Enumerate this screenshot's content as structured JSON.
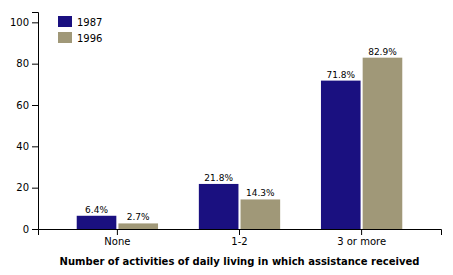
{
  "chart_data": {
    "type": "bar",
    "xlabel": "Number of activities of daily living in which assistance received",
    "categories": [
      "None",
      "1-2",
      "3 or more"
    ],
    "series": [
      {
        "name": "1987",
        "color": "#1a1080",
        "values": [
          6.4,
          21.8,
          71.8
        ],
        "value_labels": [
          "6.4%",
          "21.8%",
          "71.8%"
        ]
      },
      {
        "name": "1996",
        "color": "#a09878",
        "values": [
          2.7,
          14.3,
          82.9
        ],
        "value_labels": [
          "2.7%",
          "14.3%",
          "82.9%"
        ]
      }
    ],
    "ylim": [
      0,
      105
    ],
    "yticks": [
      0,
      20,
      40,
      60,
      80,
      100
    ],
    "data_labels": true,
    "legend": "upper left",
    "grid": false
  }
}
